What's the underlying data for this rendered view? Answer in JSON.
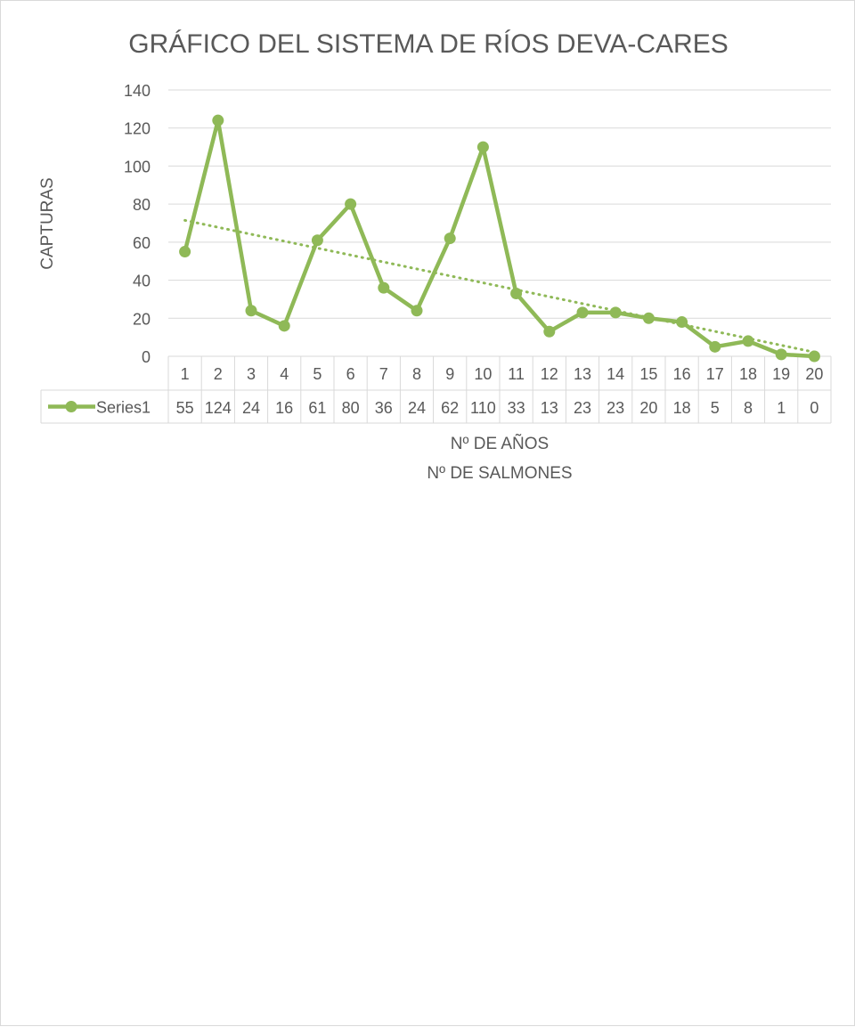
{
  "chart_data": {
    "type": "line",
    "title": "GRÁFICO DEL SISTEMA DE RÍOS DEVA-CARES",
    "ylabel": "CAPTURAS",
    "xlabel": "Nº DE AÑOS",
    "xlabel2": "Nº DE SALMONES",
    "ylim": [
      0,
      140
    ],
    "yticks": [
      "0",
      "20",
      "40",
      "60",
      "80",
      "100",
      "120",
      "140"
    ],
    "categories": [
      "1",
      "2",
      "3",
      "4",
      "5",
      "6",
      "7",
      "8",
      "9",
      "10",
      "11",
      "12",
      "13",
      "14",
      "15",
      "16",
      "17",
      "18",
      "19",
      "20"
    ],
    "series": [
      {
        "name": "Series1",
        "values": [
          55,
          124,
          24,
          16,
          61,
          80,
          36,
          24,
          62,
          110,
          33,
          13,
          23,
          23,
          20,
          18,
          5,
          8,
          1,
          0
        ],
        "color": "#8fb957"
      }
    ],
    "trendline": {
      "type": "linear",
      "style": "dotted",
      "color": "#8fb957"
    },
    "grid": true,
    "legend": "data-table-left",
    "data_table": true
  }
}
